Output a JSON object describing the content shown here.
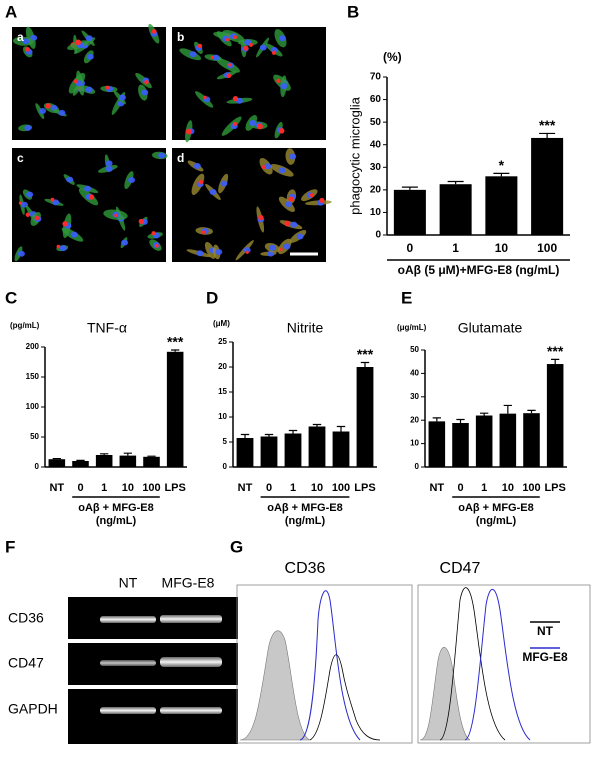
{
  "panel_labels": [
    "A",
    "B",
    "C",
    "D",
    "E",
    "F",
    "G"
  ],
  "panel_a": {
    "image_labels": [
      "a",
      "b",
      "c",
      "d"
    ]
  },
  "chart_data": [
    {
      "type": "bar",
      "y_unit": "(%)",
      "ylabel": "phagocytic microglia",
      "categories": [
        "0",
        "1",
        "10",
        "100"
      ],
      "values": [
        20,
        22.5,
        26,
        43
      ],
      "errors": [
        1.2,
        1.2,
        1.3,
        2
      ],
      "annotations": [
        null,
        null,
        "*",
        "***"
      ],
      "xlabel": [
        "oAβ (5 μM)+MFG-E8 (ng/mL)"
      ],
      "ylim": [
        0,
        70
      ],
      "yticks": [
        0,
        10,
        20,
        30,
        40,
        50,
        60,
        70
      ],
      "color": "#000000"
    },
    {
      "type": "bar",
      "title": "TNF-α",
      "y_unit": "(pg/mL)",
      "categories": [
        "NT",
        "0",
        "1",
        "10",
        "100",
        "LPS"
      ],
      "values": [
        13,
        10,
        20,
        19,
        17,
        192
      ],
      "errors": [
        1,
        1,
        2,
        4,
        1,
        3
      ],
      "annotations": [
        null,
        null,
        null,
        null,
        null,
        "***"
      ],
      "xlabel": [
        "oAβ + MFG-E8",
        "(ng/mL)"
      ],
      "ylim": [
        0,
        200
      ],
      "yticks": [
        0,
        50,
        100,
        150,
        200
      ],
      "color": "#000000"
    },
    {
      "type": "bar",
      "title": "Nitrite",
      "y_unit": "(μM)",
      "categories": [
        "NT",
        "0",
        "1",
        "10",
        "100",
        "LPS"
      ],
      "values": [
        5.8,
        6.1,
        6.7,
        8.1,
        7.1,
        20
      ],
      "errors": [
        0.7,
        0.4,
        0.6,
        0.4,
        1,
        0.9
      ],
      "annotations": [
        null,
        null,
        null,
        null,
        null,
        "***"
      ],
      "xlabel": [
        "oAβ + MFG-E8",
        "(ng/mL)"
      ],
      "ylim": [
        0,
        25
      ],
      "yticks": [
        0,
        5,
        10,
        15,
        20,
        25
      ],
      "color": "#000000"
    },
    {
      "type": "bar",
      "title": "Glutamate",
      "y_unit": "(μg/mL)",
      "categories": [
        "NT",
        "0",
        "1",
        "10",
        "100",
        "LPS"
      ],
      "values": [
        19.5,
        18.8,
        22,
        22.8,
        23,
        44
      ],
      "errors": [
        1.5,
        1.5,
        1,
        3.5,
        1.2,
        2
      ],
      "annotations": [
        null,
        null,
        null,
        null,
        null,
        "***"
      ],
      "xlabel": [
        "oAβ + MFG-E8",
        "(ng/mL)"
      ],
      "ylim": [
        0,
        50
      ],
      "yticks": [
        0,
        10,
        20,
        30,
        40,
        50
      ],
      "color": "#000000"
    }
  ],
  "panel_f": {
    "columns": [
      "NT",
      "MFG-E8"
    ],
    "rows": [
      "CD36",
      "CD47",
      "GAPDH"
    ]
  },
  "panel_g": {
    "titles": [
      "CD36",
      "CD47"
    ],
    "legend": [
      {
        "name": "NT",
        "color": "#000000"
      },
      {
        "name": "MFG-E8",
        "color": "#2b2bcc"
      }
    ]
  }
}
